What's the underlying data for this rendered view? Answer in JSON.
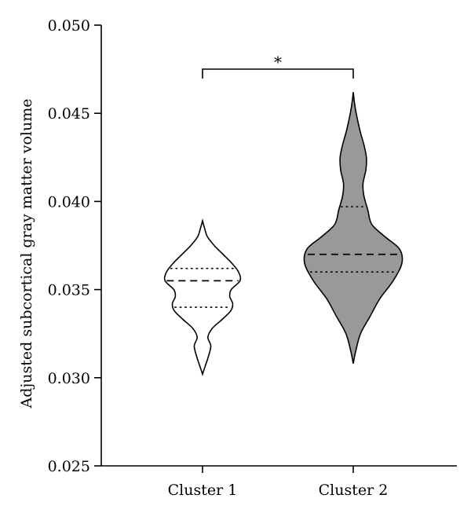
{
  "chart_data": {
    "type": "violin",
    "title": "",
    "xlabel": "",
    "ylabel": "Adjusted subcortical gray matter volume",
    "ylim": [
      0.025,
      0.05
    ],
    "y_ticks": [
      "0.025",
      "0.030",
      "0.035",
      "0.040",
      "0.045",
      "0.050"
    ],
    "categories": [
      "Cluster 1",
      "Cluster 2"
    ],
    "grid": false,
    "colors": {
      "Cluster 1": "#ffffff",
      "Cluster 2": "#999999"
    },
    "series": [
      {
        "category": "Cluster 1",
        "median": 0.0355,
        "q1": 0.034,
        "q3": 0.0362,
        "min": 0.0302,
        "max": 0.0389,
        "density": [
          [
            0.0302,
            0.0
          ],
          [
            0.0307,
            0.06
          ],
          [
            0.0312,
            0.12
          ],
          [
            0.0318,
            0.17
          ],
          [
            0.0323,
            0.11
          ],
          [
            0.0328,
            0.2
          ],
          [
            0.0333,
            0.4
          ],
          [
            0.0338,
            0.58
          ],
          [
            0.0342,
            0.62
          ],
          [
            0.0346,
            0.56
          ],
          [
            0.035,
            0.59
          ],
          [
            0.0355,
            0.77
          ],
          [
            0.036,
            0.74
          ],
          [
            0.0365,
            0.6
          ],
          [
            0.037,
            0.42
          ],
          [
            0.0375,
            0.24
          ],
          [
            0.038,
            0.1
          ],
          [
            0.0385,
            0.04
          ],
          [
            0.0389,
            0.0
          ]
        ]
      },
      {
        "category": "Cluster 2",
        "median": 0.037,
        "q1": 0.036,
        "q3": 0.0397,
        "min": 0.0308,
        "max": 0.0462,
        "density": [
          [
            0.0308,
            0.0
          ],
          [
            0.0315,
            0.05
          ],
          [
            0.0325,
            0.15
          ],
          [
            0.0335,
            0.35
          ],
          [
            0.0345,
            0.55
          ],
          [
            0.0355,
            0.82
          ],
          [
            0.0365,
            1.0
          ],
          [
            0.0373,
            0.95
          ],
          [
            0.038,
            0.65
          ],
          [
            0.0387,
            0.38
          ],
          [
            0.0395,
            0.3
          ],
          [
            0.0403,
            0.22
          ],
          [
            0.041,
            0.2
          ],
          [
            0.0418,
            0.26
          ],
          [
            0.0425,
            0.27
          ],
          [
            0.0432,
            0.22
          ],
          [
            0.044,
            0.14
          ],
          [
            0.045,
            0.06
          ],
          [
            0.0457,
            0.02
          ],
          [
            0.0462,
            0.0
          ]
        ]
      }
    ],
    "annotations": [
      {
        "type": "significance",
        "between": [
          "Cluster 1",
          "Cluster 2"
        ],
        "label": "*"
      }
    ]
  }
}
